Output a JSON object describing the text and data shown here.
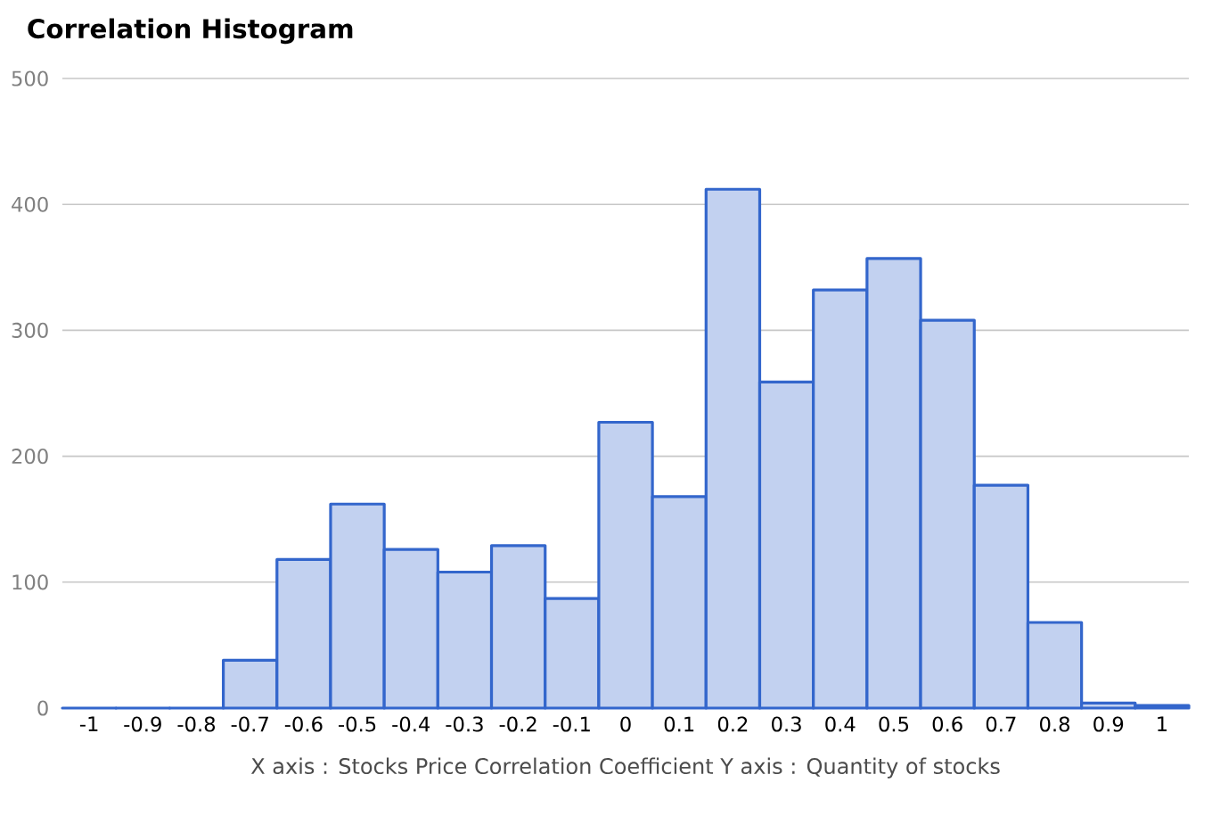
{
  "chart_data": {
    "type": "histogram",
    "title": "Correlation Histogram",
    "xlabel": "X axis : Stocks Price Correlation Coefficient  Y axis : Quantity of stocks",
    "bins": [
      -1.05,
      -0.95,
      -0.85,
      -0.75,
      -0.65,
      -0.55,
      -0.45,
      -0.35,
      -0.25,
      -0.15,
      -0.05,
      0.05,
      0.15,
      0.25,
      0.35,
      0.45,
      0.55,
      0.65,
      0.75,
      0.85,
      0.95,
      1.05
    ],
    "values": [
      0,
      0,
      0,
      38,
      118,
      162,
      126,
      108,
      129,
      87,
      227,
      168,
      412,
      259,
      332,
      357,
      308,
      177,
      68,
      4,
      2
    ],
    "color": "#3366cc",
    "xlim": [
      -1.05,
      1.05
    ],
    "ylim": [
      0,
      500
    ],
    "xticks": [
      -1,
      -0.9,
      -0.8,
      -0.7,
      -0.6,
      -0.5,
      -0.4,
      -0.3,
      -0.2,
      -0.1,
      0,
      0.1,
      0.2,
      0.3,
      0.4,
      0.5,
      0.6,
      0.7,
      0.8,
      0.9,
      1
    ],
    "yticks": [
      0,
      100,
      200,
      300,
      400,
      500
    ],
    "grid": "y"
  }
}
